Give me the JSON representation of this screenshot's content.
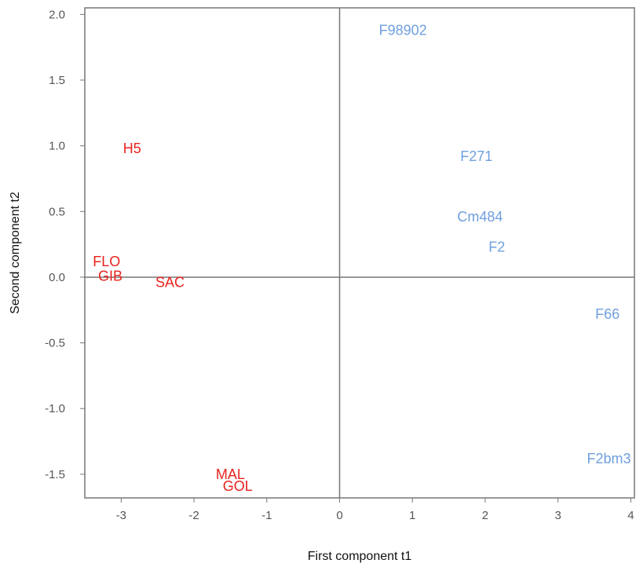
{
  "chart_data": {
    "type": "scatter",
    "title": "",
    "xlabel": "First component t1",
    "ylabel": "Second component t2",
    "xlim": [
      -3.5,
      4.05
    ],
    "ylim": [
      -1.68,
      2.05
    ],
    "x_ticks": [
      -3,
      -2,
      -1,
      0,
      1,
      2,
      3,
      4
    ],
    "y_ticks": [
      -1.5,
      -1.0,
      -0.5,
      0.0,
      0.5,
      1.0,
      1.5,
      2.0
    ],
    "x_tick_labels": [
      "-3",
      "-2",
      "-1",
      "0",
      "1",
      "2",
      "3",
      "4"
    ],
    "y_tick_labels": [
      "-1.5",
      "-1.0",
      "-0.5",
      "0.0",
      "0.5",
      "1.0",
      "1.5",
      "2.0"
    ],
    "reference_lines": {
      "x": 0,
      "y": 0
    },
    "grid": false,
    "series": [
      {
        "color": "#e8231c",
        "points": [
          {
            "label": "H5",
            "x": -2.85,
            "y": 0.98
          },
          {
            "label": "FLO",
            "x": -3.2,
            "y": 0.12
          },
          {
            "label": "GIB",
            "x": -3.15,
            "y": 0.01
          },
          {
            "label": "SAC",
            "x": -2.33,
            "y": -0.04
          },
          {
            "label": "MAL",
            "x": -1.5,
            "y": -1.5
          },
          {
            "label": "GOL",
            "x": -1.4,
            "y": -1.59
          }
        ]
      },
      {
        "color": "#6f9fde",
        "points": [
          {
            "label": "F98902",
            "x": 0.87,
            "y": 1.88
          },
          {
            "label": "F271",
            "x": 1.88,
            "y": 0.92
          },
          {
            "label": "Cm484",
            "x": 1.93,
            "y": 0.46
          },
          {
            "label": "F2",
            "x": 2.16,
            "y": 0.23
          },
          {
            "label": "F66",
            "x": 3.68,
            "y": -0.28
          },
          {
            "label": "F2bm3",
            "x": 3.7,
            "y": -1.38
          }
        ]
      }
    ]
  }
}
